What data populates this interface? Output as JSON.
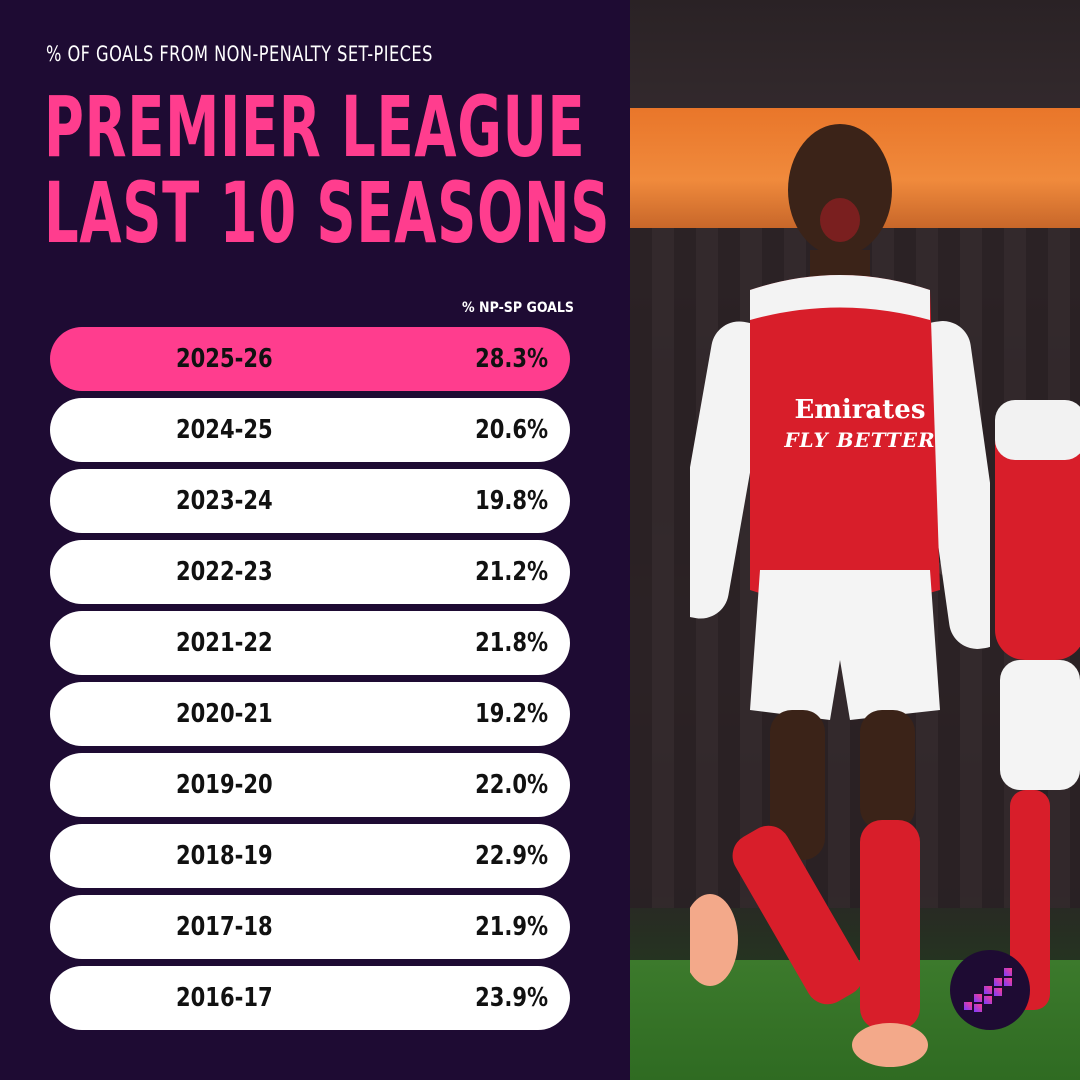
{
  "kicker": "% OF GOALS FROM NON-PENALTY SET-PIECES",
  "title_line1": "PREMIER LEAGUE",
  "title_line2": "LAST 10 SEASONS",
  "column_header": "% NP-SP GOALS",
  "sponsor_text_line1": "Emirates",
  "sponsor_text_line2": "FLY BETTER",
  "colors": {
    "background": "#1e0b33",
    "accent_pink": "#ff3d8e",
    "row_white": "#ffffff",
    "text_dark": "#111111"
  },
  "chart_data": {
    "type": "table",
    "title": "PREMIER LEAGUE LAST 10 SEASONS",
    "subtitle": "% OF GOALS FROM NON-PENALTY SET-PIECES",
    "columns": [
      "",
      "% NP-SP GOALS"
    ],
    "rows": [
      {
        "season": "2025-26",
        "value": "28.3%",
        "highlight": true
      },
      {
        "season": "2024-25",
        "value": "20.6%",
        "highlight": false
      },
      {
        "season": "2023-24",
        "value": "19.8%",
        "highlight": false
      },
      {
        "season": "2022-23",
        "value": "21.2%",
        "highlight": false
      },
      {
        "season": "2021-22",
        "value": "21.8%",
        "highlight": false
      },
      {
        "season": "2020-21",
        "value": "19.2%",
        "highlight": false
      },
      {
        "season": "2019-20",
        "value": "22.0%",
        "highlight": false
      },
      {
        "season": "2018-19",
        "value": "22.9%",
        "highlight": false
      },
      {
        "season": "2017-18",
        "value": "21.9%",
        "highlight": false
      },
      {
        "season": "2016-17",
        "value": "23.9%",
        "highlight": false
      }
    ],
    "values": [
      28.3,
      20.6,
      19.8,
      21.2,
      21.8,
      19.2,
      22.0,
      22.9,
      21.9,
      23.9
    ]
  },
  "logo_icon": "ascending-bars-logo-icon"
}
